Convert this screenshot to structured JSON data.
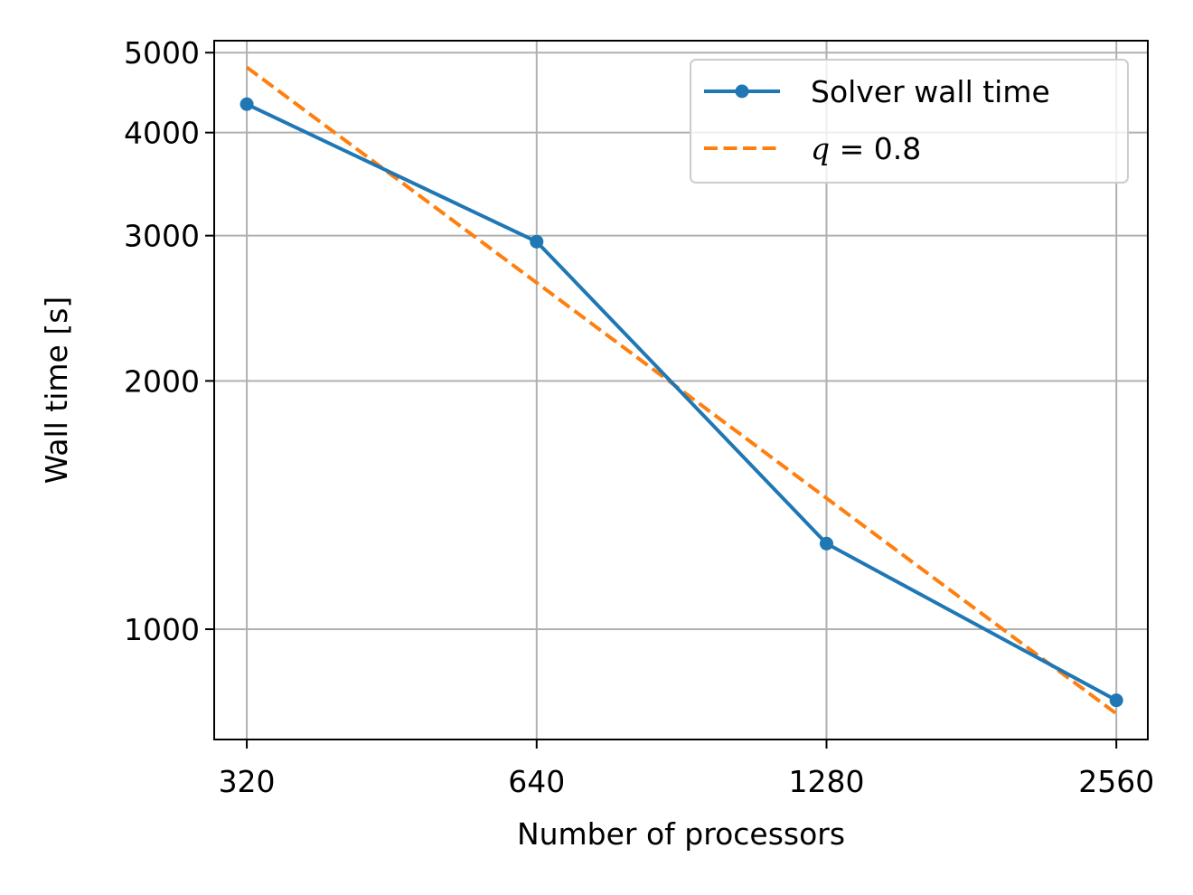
{
  "chart_data": {
    "type": "line",
    "xlabel": "Number of processors",
    "ylabel": "Wall time [s]",
    "x_scale": "log2",
    "y_scale": "log",
    "xlim": [
      296,
      2760
    ],
    "ylim": [
      735,
      5170
    ],
    "grid": true,
    "legend_position": "upper right",
    "x_ticks": [
      {
        "value": 320,
        "label": "320"
      },
      {
        "value": 640,
        "label": "640"
      },
      {
        "value": 1280,
        "label": "1280"
      },
      {
        "value": 2560,
        "label": "2560"
      }
    ],
    "y_ticks": [
      {
        "value": 1000,
        "label": "1000"
      },
      {
        "value": 2000,
        "label": "2000"
      },
      {
        "value": 3000,
        "label": "3000"
      },
      {
        "value": 4000,
        "label": "4000"
      },
      {
        "value": 5000,
        "label": "5000"
      }
    ],
    "series": [
      {
        "name": "Solver wall time",
        "color": "#1f77b4",
        "style": "solid",
        "marker": "circle",
        "x": [
          320,
          640,
          1280,
          2560
        ],
        "y": [
          4330,
          2950,
          1270,
          820
        ]
      },
      {
        "name_prefix": "q",
        "name_suffix": " = 0.8",
        "color": "#ff7f0e",
        "style": "dashed",
        "marker": "none",
        "x": [
          320,
          2560
        ],
        "y": [
          4800,
          790
        ]
      }
    ]
  }
}
